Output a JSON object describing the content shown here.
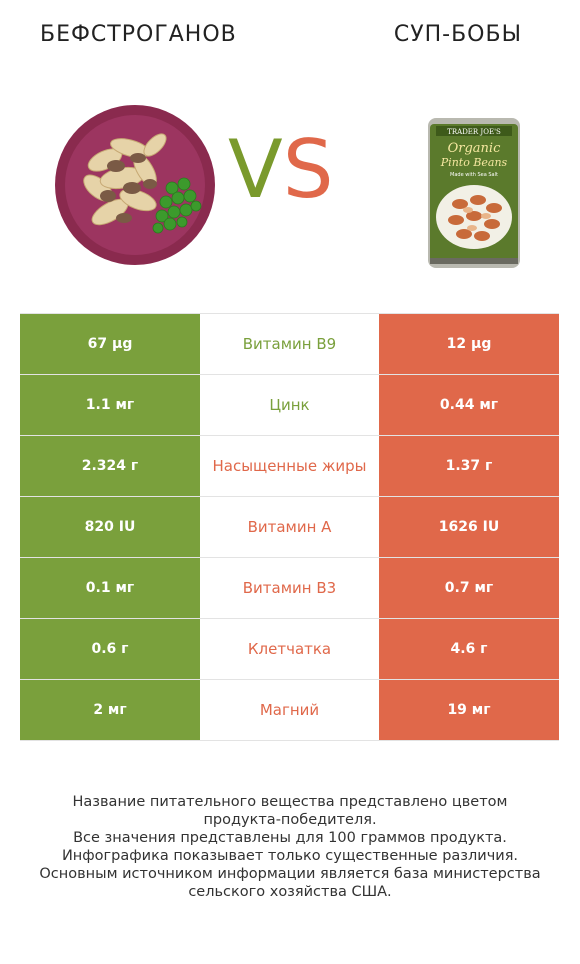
{
  "header": {
    "left_title": "БЕФСТРОГАНОВ",
    "right_title": "СУП-БОБЫ",
    "vs_v": "V",
    "vs_s": "S"
  },
  "can_label": {
    "brand": "TRADER JOE'S",
    "line1": "Organic",
    "line2": "Pinto Beans",
    "line3": "Made with Sea Salt"
  },
  "colors": {
    "left_winner": "#7aa03c",
    "right_winner": "#e0684a"
  },
  "chart_data": {
    "type": "table",
    "columns": [
      "БЕФСТРОГАНОВ",
      "nutrient",
      "СУП-БОБЫ"
    ],
    "rows": [
      {
        "left": "67 µg",
        "nutrient": "Витамин B9",
        "right": "12 µg",
        "winner": "left"
      },
      {
        "left": "1.1 мг",
        "nutrient": "Цинк",
        "right": "0.44 мг",
        "winner": "left"
      },
      {
        "left": "2.324 г",
        "nutrient": "Насыщенные жиры",
        "right": "1.37 г",
        "winner": "right"
      },
      {
        "left": "820 IU",
        "nutrient": "Витамин A",
        "right": "1626 IU",
        "winner": "right"
      },
      {
        "left": "0.1 мг",
        "nutrient": "Витамин B3",
        "right": "0.7 мг",
        "winner": "right"
      },
      {
        "left": "0.6 г",
        "nutrient": "Клетчатка",
        "right": "4.6 г",
        "winner": "right"
      },
      {
        "left": "2 мг",
        "nutrient": "Магний",
        "right": "19 мг",
        "winner": "right"
      }
    ]
  },
  "footnote": {
    "line1": "Название питательного вещества представлено цветом",
    "line2": "продукта-победителя.",
    "line3": "Все значения представлены для 100 граммов продукта.",
    "line4": "Инфографика показывает только существенные различия.",
    "line5": "Основным источником информации является база министерства",
    "line6": "сельского хозяйства США."
  }
}
